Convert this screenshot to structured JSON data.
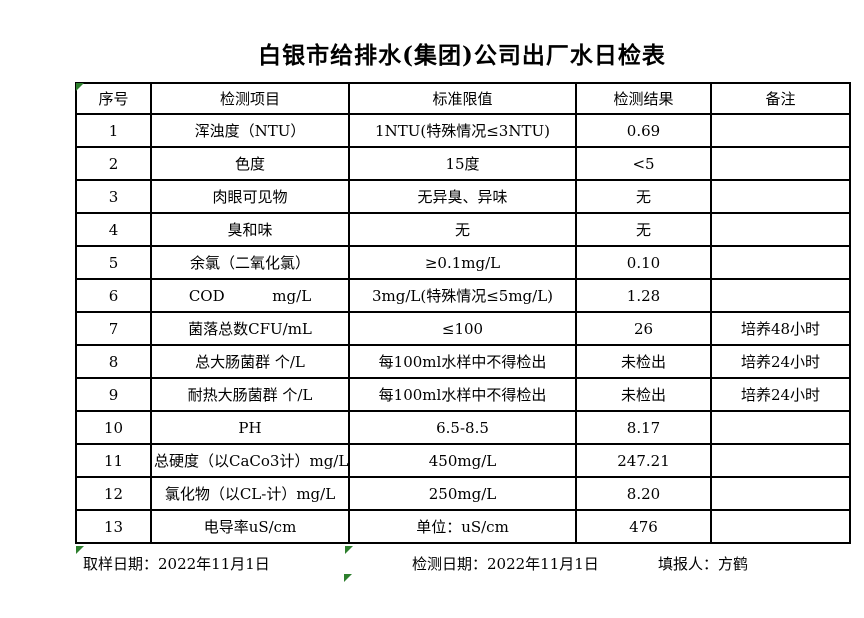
{
  "title": "白银市给排水(集团)公司出厂水日检表",
  "table": {
    "headers": [
      "序号",
      "检测项目",
      "标准限值",
      "检测结果",
      "备注"
    ],
    "rows": [
      [
        "1",
        "浑浊度（NTU）",
        "1NTU(特殊情况≤3NTU)",
        "0.69",
        ""
      ],
      [
        "2",
        "色度",
        "15度",
        "<5",
        ""
      ],
      [
        "3",
        "肉眼可见物",
        "无异臭、异味",
        "无",
        ""
      ],
      [
        "4",
        "臭和味",
        "无",
        "无",
        ""
      ],
      [
        "5",
        "余氯（二氧化氯）",
        "≥0.1mg/L",
        "0.10",
        ""
      ],
      [
        "6",
        "COD          mg/L",
        "3mg/L(特殊情况≤5mg/L)",
        "1.28",
        ""
      ],
      [
        "7",
        "菌落总数CFU/mL",
        "≤100",
        "26",
        "培养48小时"
      ],
      [
        "8",
        "总大肠菌群 个/L",
        "每100ml水样中不得检出",
        "未检出",
        "培养24小时"
      ],
      [
        "9",
        "耐热大肠菌群 个/L",
        "每100ml水样中不得检出",
        "未检出",
        "培养24小时"
      ],
      [
        "10",
        "PH",
        "6.5-8.5",
        "8.17",
        ""
      ],
      [
        "11",
        "总硬度（以CaCo3计）mg/L",
        "450mg/L",
        "247.21",
        ""
      ],
      [
        "12",
        "氯化物（以CL-计）mg/L",
        "250mg/L",
        "8.20",
        ""
      ],
      [
        "13",
        "电导率uS/cm",
        "单位：uS/cm",
        "476",
        ""
      ]
    ]
  },
  "footer": {
    "sample_date": "取样日期：2022年11月1日",
    "test_date": "检测日期：2022年11月1日",
    "filler": "填报人：方鹤"
  },
  "icons": {
    "excel_error_indicator": "green-corner-triangle"
  },
  "colors": {
    "background": "#ffffff",
    "grid": "#000000",
    "text": "#000000",
    "error_indicator_green": "#2d7f2d"
  }
}
